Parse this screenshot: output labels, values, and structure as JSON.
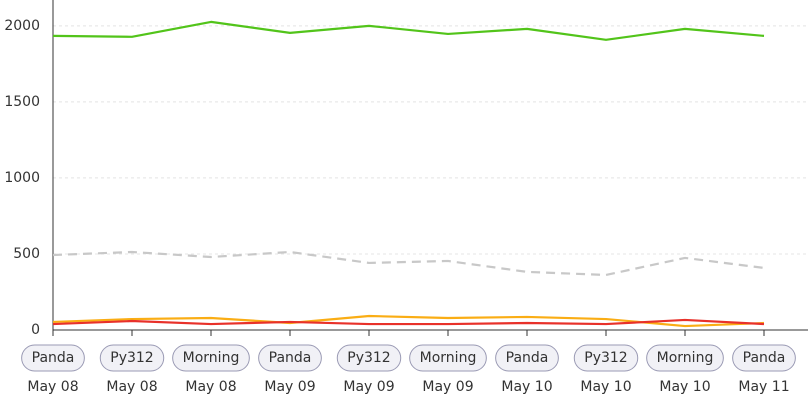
{
  "chart_data": {
    "type": "line",
    "categories": [
      "May 08",
      "May 08",
      "May 08",
      "May 09",
      "May 09",
      "May 09",
      "May 10",
      "May 10",
      "May 10",
      "May 11"
    ],
    "badges": [
      "Panda",
      "Py312",
      "Morning",
      "Panda",
      "Py312",
      "Morning",
      "Panda",
      "Py312",
      "Morning",
      "Panda"
    ],
    "series": [
      {
        "color": "#52c41a",
        "values": [
          1934,
          1928,
          2026,
          1954,
          2000,
          1947,
          1980,
          1908,
          1980,
          1934
        ]
      },
      {
        "color": "#c8c8c8",
        "dashed": true,
        "values": [
          493,
          513,
          480,
          513,
          441,
          454,
          382,
          362,
          474,
          408
        ]
      },
      {
        "color": "#faad14",
        "values": [
          53,
          72,
          79,
          46,
          92,
          79,
          86,
          72,
          26,
          46
        ]
      },
      {
        "color": "#e8312a",
        "values": [
          39,
          59,
          39,
          53,
          39,
          39,
          46,
          39,
          66,
          39
        ]
      }
    ],
    "ylim": [
      0,
      2170
    ],
    "yticks": [
      0,
      500,
      1000,
      1500,
      2000
    ],
    "grid": true
  }
}
